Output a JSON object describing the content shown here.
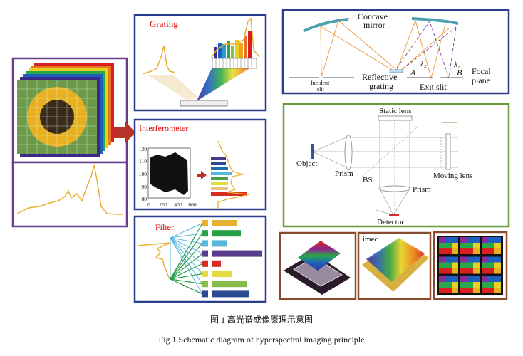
{
  "panels": {
    "grating": {
      "title": "Grating"
    },
    "interferometer": {
      "title": "Interferometer",
      "y_ticks": [
        "120",
        "110",
        "100",
        "90",
        "80"
      ],
      "x_ticks": [
        "0",
        "200",
        "400",
        "600"
      ]
    },
    "filter": {
      "title": "Filter"
    },
    "spectrometer": {
      "concave_mirror": "Concave",
      "concave_mirror_2": "mirror",
      "incident_slit": "Incident",
      "incident_slit_2": "slit",
      "reflective_grating": "Reflective",
      "reflective_grating_2": "grating",
      "exit_slit": "Exit slit",
      "point_a": "A",
      "point_b": "B",
      "lambda2": "λ₂",
      "lambda1": "λ₁",
      "focal_plane": "Focal",
      "focal_plane_2": "plane"
    },
    "fourier": {
      "static_lens": "Static lens",
      "object": "Object",
      "prism_left": "Prism",
      "bs": "BS",
      "prism_bottom": "Prism",
      "moving_lens": "Moving lens",
      "detector": "Detector"
    },
    "sensors": {
      "imec_label": "imec"
    }
  },
  "filter_bars": [
    {
      "color": "#e8b030",
      "value": 35
    },
    {
      "color": "#27a048",
      "value": 40
    },
    {
      "color": "#58b8dc",
      "value": 20
    },
    {
      "color": "#5a3c8c",
      "value": 70
    },
    {
      "color": "#d82a20",
      "value": 12
    },
    {
      "color": "#e2dc40",
      "value": 27
    },
    {
      "color": "#88bc48",
      "value": 48
    },
    {
      "color": "#2a4a94",
      "value": 51
    }
  ],
  "colors": {
    "left_border": "#6a3c8c",
    "blue_border": "#2a3c8c",
    "green_border": "#6a9a3c",
    "brown_border": "#8a4a2c",
    "title_red": "#e00000",
    "spectrum": "#e8b030"
  },
  "caption": {
    "chinese": "图 1  高光谱成像原理示意图",
    "english": "Fig.1  Schematic diagram of hyperspectral imaging principle"
  }
}
